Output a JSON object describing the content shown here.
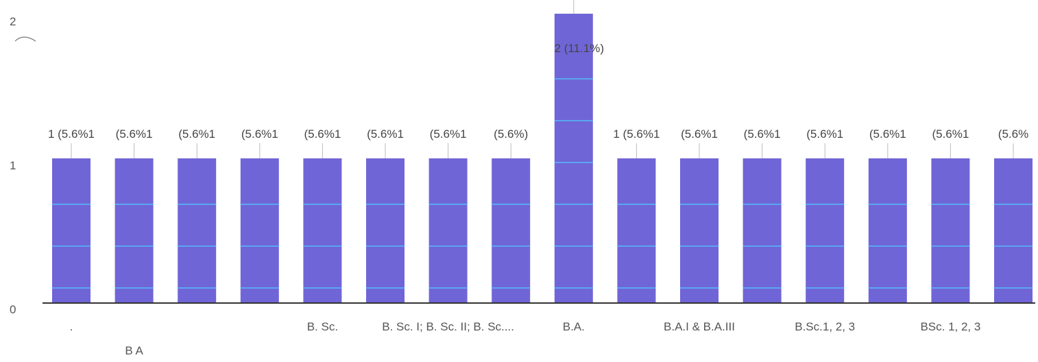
{
  "chart_data": {
    "type": "bar",
    "ylim": [
      0,
      2
    ],
    "y_ticks": [
      "0",
      "1",
      "2"
    ],
    "grid": false,
    "bar_color": "#7065d6",
    "band_color": "#5aa6f0",
    "categories": [
      ".",
      "B A",
      "",
      "",
      "B. Sc.",
      "",
      "B. Sc. I; B. Sc. II; B. Sc....",
      "",
      "B.A.",
      "",
      "B.A.I & B.A.III",
      "",
      "B.Sc.1, 2, 3",
      "",
      "BSc. 1, 2, 3",
      ""
    ],
    "values": [
      1,
      1,
      1,
      1,
      1,
      1,
      1,
      1,
      2,
      1,
      1,
      1,
      1,
      1,
      1,
      1
    ],
    "data_labels": [
      "1 (5.6%1",
      "(5.6%1",
      "(5.6%1",
      "(5.6%1",
      "(5.6%1",
      "(5.6%1",
      "(5.6%1",
      "(5.6%)",
      "2 (11.1%)",
      "1 (5.6%1",
      "(5.6%1",
      "(5.6%1",
      "(5.6%1",
      "(5.6%1",
      "(5.6%1",
      "(5.6%"
    ]
  }
}
